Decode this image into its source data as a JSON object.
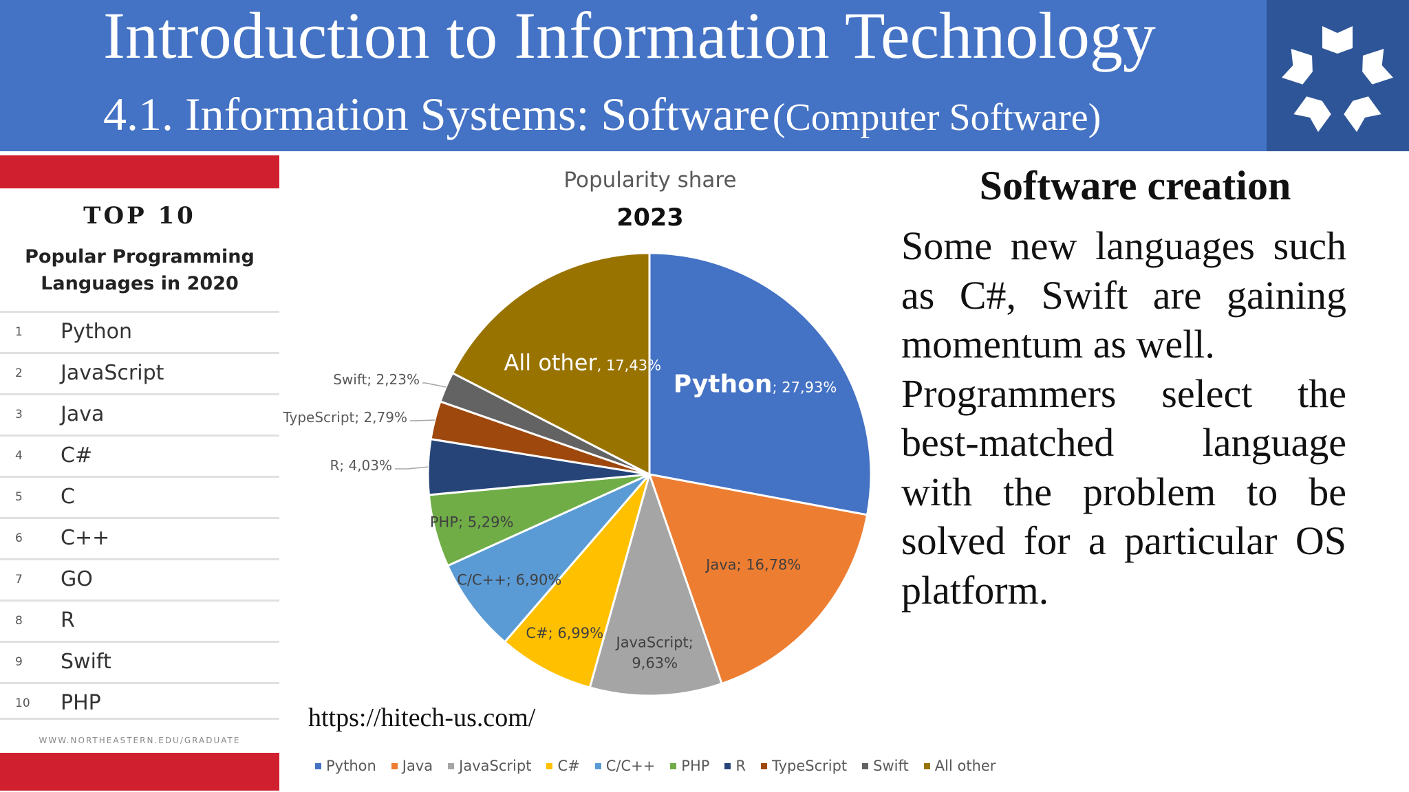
{
  "header": {
    "title": "Introduction to Information Technology",
    "subtitle_main": "4.1. Information Systems: Software",
    "subtitle_paren": "(Computer Software)",
    "logo_icon": "book-wheel-logo-icon",
    "bg_color": "#4472c4"
  },
  "infographic": {
    "heading": "TOP 10",
    "subheading_line1": "Popular Programming",
    "subheading_line2": "Languages in 2020",
    "ranking": [
      {
        "rank": "1",
        "name": "Python"
      },
      {
        "rank": "2",
        "name": "JavaScript"
      },
      {
        "rank": "3",
        "name": "Java"
      },
      {
        "rank": "4",
        "name": "C#"
      },
      {
        "rank": "5",
        "name": "C"
      },
      {
        "rank": "6",
        "name": "C++"
      },
      {
        "rank": "7",
        "name": "GO"
      },
      {
        "rank": "8",
        "name": "R"
      },
      {
        "rank": "9",
        "name": "Swift"
      },
      {
        "rank": "10",
        "name": "PHP"
      }
    ],
    "footer": "WWW.NORTHEASTERN.EDU/GRADUATE",
    "accent_color": "#d0202f"
  },
  "chart_data": {
    "type": "pie",
    "title": "Popularity share",
    "subtitle": "2023",
    "series": [
      {
        "name": "Python",
        "value": 27.93,
        "label": "27,93%",
        "color": "#4472c4"
      },
      {
        "name": "Java",
        "value": 16.78,
        "label": "16,78%",
        "color": "#ed7d31"
      },
      {
        "name": "JavaScript",
        "value": 9.63,
        "label": "9,63%",
        "color": "#a5a5a5"
      },
      {
        "name": "C#",
        "value": 6.99,
        "label": "6,99%",
        "color": "#ffc000"
      },
      {
        "name": "C/C++",
        "value": 6.9,
        "label": "6,90%",
        "color": "#5b9bd5"
      },
      {
        "name": "PHP",
        "value": 5.29,
        "label": "5,29%",
        "color": "#70ad47"
      },
      {
        "name": "R",
        "value": 4.03,
        "label": "4,03%",
        "color": "#264478"
      },
      {
        "name": "TypeScript",
        "value": 2.79,
        "label": "2,79%",
        "color": "#9e480e"
      },
      {
        "name": "Swift",
        "value": 2.23,
        "label": "2,23%",
        "color": "#636363"
      },
      {
        "name": "All other",
        "value": 17.43,
        "label": "17,43%",
        "color": "#997300"
      }
    ],
    "start_angle_deg": 0,
    "direction": "clockwise",
    "legend_position": "bottom"
  },
  "source_url": "https://hitech-us.com/",
  "right_text": {
    "title": "Software creation",
    "para1": "Some new languages such as C#, Swift are gaining momentum as well.",
    "para2": "Programmers select the best-matched language with the problem to be solved for a particular OS platform."
  }
}
